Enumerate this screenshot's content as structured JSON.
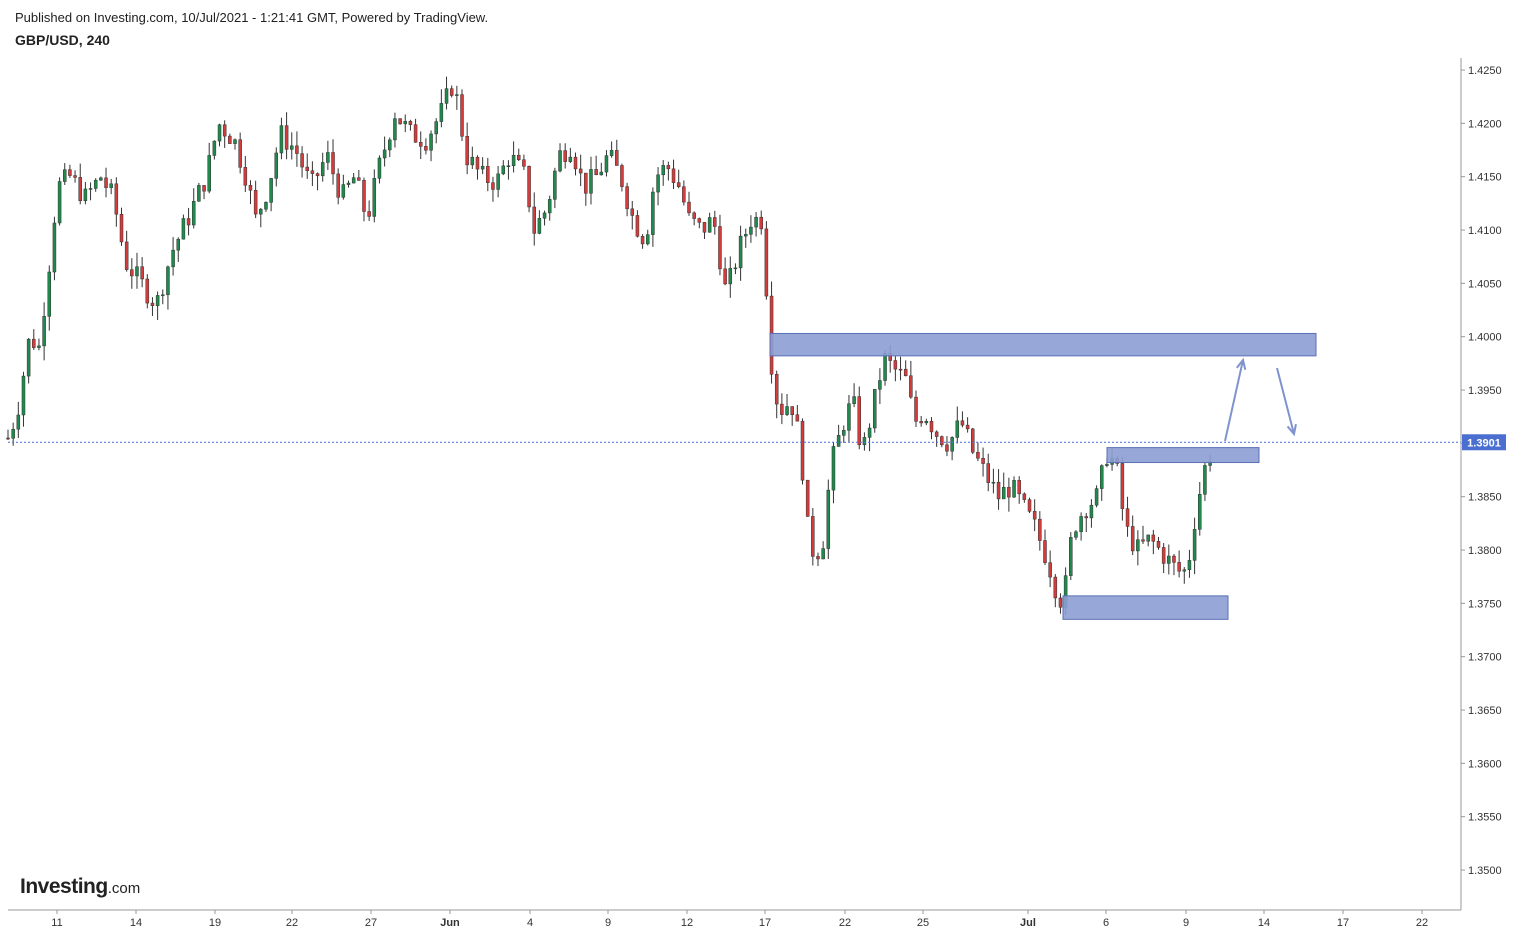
{
  "header": {
    "published": "Published on Investing.com, 10/Jul/2021 - 1:21:41 GMT, Powered by TradingView.",
    "symbol": "GBP/USD, 240"
  },
  "logo": {
    "brand": "Investing",
    "domain": ".com"
  },
  "chart_data": {
    "type": "candlestick",
    "symbol": "GBP/USD",
    "interval": "240",
    "price_axis": {
      "position": "right",
      "ticks": [
        "1.4250",
        "1.4200",
        "1.4150",
        "1.4100",
        "1.4050",
        "1.4000",
        "1.3950",
        "1.3900",
        "1.3850",
        "1.3800",
        "1.3750",
        "1.3700",
        "1.3650",
        "1.3600",
        "1.3550",
        "1.3500"
      ],
      "range": [
        1.3455,
        1.4265
      ]
    },
    "time_axis": {
      "labels": [
        "11",
        "14",
        "19",
        "22",
        "27",
        "Jun",
        "4",
        "9",
        "12",
        "17",
        "22",
        "25",
        "Jul",
        "6",
        "9",
        "14",
        "17",
        "22"
      ],
      "bold_labels": [
        "Jun",
        "Jul"
      ]
    },
    "current_price": {
      "label": "1.3901",
      "value": 1.3901,
      "color": "#4a6fd1"
    },
    "colors": {
      "up": "#1f8a4c",
      "down": "#d23c3c",
      "zone_fill": "#8c9fd4",
      "zone_stroke": "#5b6fb5",
      "arrow": "#7f93cf"
    },
    "zones": [
      {
        "name": "resistance-zone-upper",
        "price_top": 1.4003,
        "price_bottom": 1.3982,
        "time_start": 17.1,
        "time_end": 24.0
      },
      {
        "name": "breakout-zone",
        "price_top": 1.3896,
        "price_bottom": 1.3882,
        "time_start": 22.1,
        "time_end": 23.5
      },
      {
        "name": "support-zone",
        "price_top": 1.3757,
        "price_bottom": 1.3735,
        "time_start": 21.8,
        "time_end": 23.9
      }
    ],
    "arrows": [
      {
        "name": "projection-up-arrow",
        "from": [
          23.5,
          1.3903
        ],
        "to": [
          23.7,
          1.3985
        ]
      },
      {
        "name": "projection-down-arrow",
        "from": [
          24.1,
          1.3975
        ],
        "to": [
          24.4,
          1.3912
        ]
      }
    ],
    "key_points": [
      [
        0.0,
        1.3905
      ],
      [
        0.3,
        1.393
      ],
      [
        0.7,
        1.4
      ],
      [
        1.0,
        1.399
      ],
      [
        1.3,
        1.406
      ],
      [
        1.6,
        1.414
      ],
      [
        2.0,
        1.415
      ],
      [
        2.5,
        1.413
      ],
      [
        3.0,
        1.415
      ],
      [
        3.4,
        1.413
      ],
      [
        3.8,
        1.407
      ],
      [
        4.3,
        1.405
      ],
      [
        4.8,
        1.403
      ],
      [
        5.3,
        1.408
      ],
      [
        5.8,
        1.411
      ],
      [
        6.4,
        1.415
      ],
      [
        6.8,
        1.42
      ],
      [
        7.3,
        1.4185
      ],
      [
        7.7,
        1.415
      ],
      [
        8.0,
        1.411
      ],
      [
        8.4,
        1.414
      ],
      [
        8.8,
        1.419
      ],
      [
        9.3,
        1.4175
      ],
      [
        9.8,
        1.414
      ],
      [
        10.3,
        1.417
      ],
      [
        10.8,
        1.413
      ],
      [
        11.2,
        1.415
      ],
      [
        11.6,
        1.411
      ],
      [
        12.0,
        1.416
      ],
      [
        12.5,
        1.421
      ],
      [
        13.0,
        1.419
      ],
      [
        13.5,
        1.4185
      ],
      [
        14.0,
        1.421
      ],
      [
        14.4,
        1.424
      ],
      [
        14.8,
        1.417
      ],
      [
        15.3,
        1.415
      ],
      [
        15.8,
        1.4145
      ],
      [
        16.2,
        1.417
      ],
      [
        16.7,
        1.415
      ],
      [
        17.0,
        1.41
      ],
      [
        17.4,
        1.412
      ],
      [
        17.8,
        1.417
      ],
      [
        18.2,
        1.418
      ],
      [
        18.6,
        1.414
      ],
      [
        19.0,
        1.415
      ],
      [
        19.4,
        1.417
      ],
      [
        19.8,
        1.415
      ],
      [
        20.2,
        1.411
      ],
      [
        20.6,
        1.409
      ],
      [
        20.9,
        1.415
      ],
      [
        21.3,
        1.416
      ],
      [
        21.7,
        1.414
      ],
      [
        22.0,
        1.411
      ],
      [
        22.4,
        1.41
      ],
      [
        22.8,
        1.411
      ],
      [
        23.2,
        1.404
      ],
      [
        23.6,
        1.408
      ],
      [
        24.0,
        1.411
      ],
      [
        24.4,
        1.411
      ],
      [
        24.6,
        1.399
      ],
      [
        24.9,
        1.393
      ],
      [
        25.3,
        1.394
      ],
      [
        25.6,
        1.39
      ],
      [
        25.9,
        1.38
      ],
      [
        26.3,
        1.38
      ],
      [
        26.6,
        1.388
      ],
      [
        27.0,
        1.392
      ],
      [
        27.3,
        1.394
      ],
      [
        27.6,
        1.389
      ],
      [
        28.0,
        1.394
      ],
      [
        28.3,
        1.398
      ],
      [
        28.6,
        1.397
      ],
      [
        29.0,
        1.396
      ],
      [
        29.3,
        1.392
      ],
      [
        29.6,
        1.393
      ],
      [
        30.0,
        1.391
      ],
      [
        30.4,
        1.39
      ],
      [
        30.8,
        1.392
      ],
      [
        31.2,
        1.389
      ],
      [
        31.6,
        1.387
      ],
      [
        32.0,
        1.385
      ],
      [
        32.4,
        1.386
      ],
      [
        32.8,
        1.384
      ],
      [
        33.2,
        1.382
      ],
      [
        33.6,
        1.379
      ],
      [
        33.9,
        1.376
      ],
      [
        34.1,
        1.375
      ],
      [
        34.4,
        1.382
      ],
      [
        34.8,
        1.384
      ],
      [
        35.2,
        1.385
      ],
      [
        35.5,
        1.389
      ],
      [
        35.8,
        1.388
      ],
      [
        36.1,
        1.382
      ],
      [
        36.5,
        1.38
      ],
      [
        36.9,
        1.381
      ],
      [
        37.2,
        1.38
      ],
      [
        37.5,
        1.379
      ],
      [
        37.8,
        1.378
      ],
      [
        38.1,
        1.378
      ],
      [
        38.4,
        1.384
      ],
      [
        38.7,
        1.388
      ],
      [
        39.0,
        1.3901
      ]
    ]
  }
}
